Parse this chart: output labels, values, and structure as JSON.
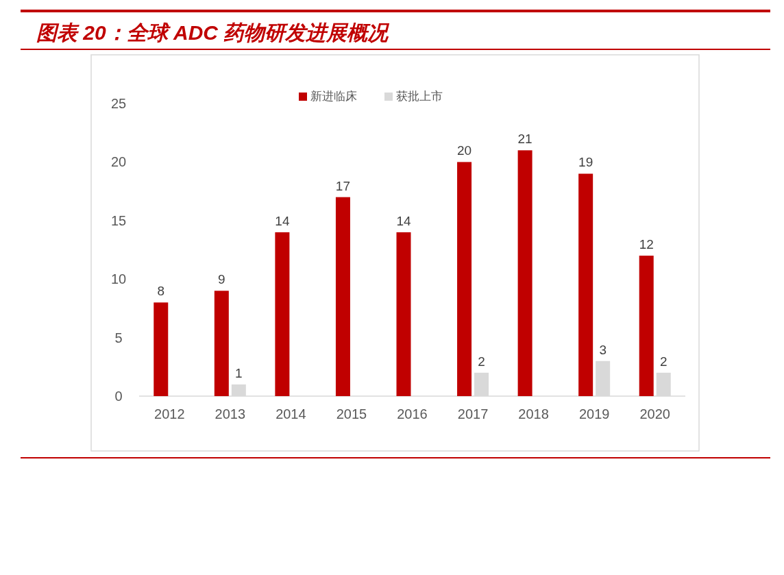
{
  "chart_data": {
    "type": "bar",
    "title": "图表 20：全球 ADC 药物研发进展概况",
    "categories": [
      "2012",
      "2013",
      "2014",
      "2015",
      "2016",
      "2017",
      "2018",
      "2019",
      "2020"
    ],
    "series": [
      {
        "name": "新进临床",
        "color": "#c00000",
        "values": [
          8,
          9,
          14,
          17,
          14,
          20,
          21,
          19,
          12
        ]
      },
      {
        "name": "获批上市",
        "color": "#d9d9d9",
        "values": [
          null,
          1,
          null,
          null,
          null,
          2,
          null,
          3,
          2
        ]
      }
    ],
    "ylim": [
      0,
      25
    ],
    "yticks": [
      0,
      5,
      10,
      15,
      20,
      25
    ],
    "grid": false,
    "legend": "top",
    "data_labels": true
  }
}
